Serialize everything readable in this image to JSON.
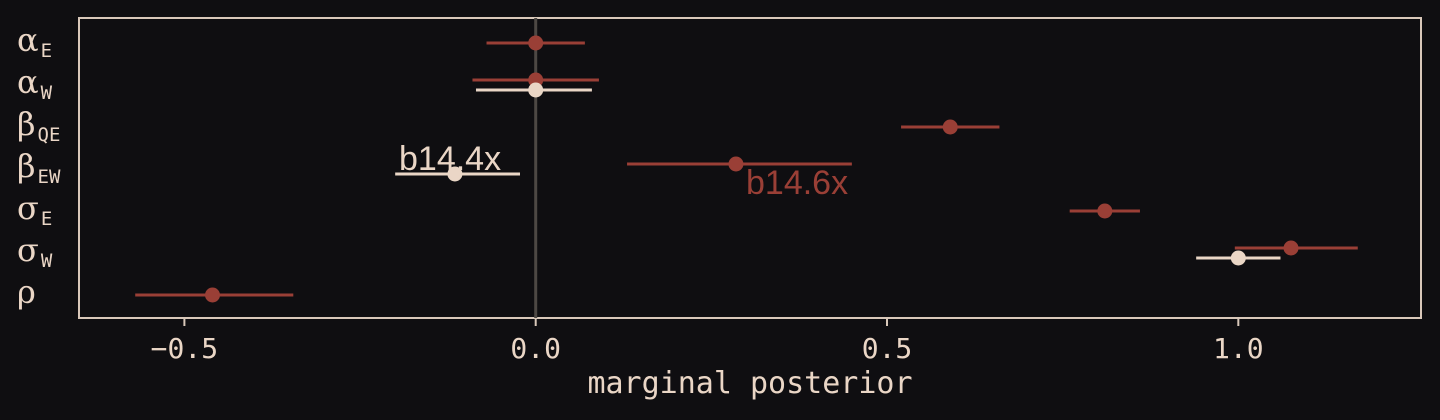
{
  "chart_data": {
    "type": "scatter",
    "xlabel": "marginal posterior",
    "xlim": [
      -0.65,
      1.26
    ],
    "xticks": [
      {
        "value": -0.5,
        "label": "−0.5"
      },
      {
        "value": 0.0,
        "label": "0.0"
      },
      {
        "value": 0.5,
        "label": "0.5"
      },
      {
        "value": 1.0,
        "label": "1.0"
      }
    ],
    "reference_line": 0,
    "grid": false,
    "parameters": [
      {
        "key": "alpha_E",
        "name": "α",
        "sub": "E"
      },
      {
        "key": "alpha_W",
        "name": "α",
        "sub": "W"
      },
      {
        "key": "beta_QE",
        "name": "β",
        "sub": "QE"
      },
      {
        "key": "beta_EW",
        "name": "β",
        "sub": "EW"
      },
      {
        "key": "sigma_E",
        "name": "σ",
        "sub": "E"
      },
      {
        "key": "sigma_W",
        "name": "σ",
        "sub": "W"
      },
      {
        "key": "rho",
        "name": "ρ",
        "sub": ""
      }
    ],
    "series": [
      {
        "name": "b14.6x",
        "color": "#9a3f36",
        "points": [
          {
            "param": "alpha_E",
            "mean": 0.0,
            "lower": -0.07,
            "upper": 0.07
          },
          {
            "param": "alpha_W",
            "mean": 0.0,
            "lower": -0.09,
            "upper": 0.09
          },
          {
            "param": "beta_QE",
            "mean": 0.59,
            "lower": 0.52,
            "upper": 0.66
          },
          {
            "param": "beta_EW",
            "mean": 0.285,
            "lower": 0.13,
            "upper": 0.45
          },
          {
            "param": "sigma_E",
            "mean": 0.81,
            "lower": 0.76,
            "upper": 0.86
          },
          {
            "param": "sigma_W",
            "mean": 1.075,
            "lower": 0.995,
            "upper": 1.17
          },
          {
            "param": "rho",
            "mean": -0.46,
            "lower": -0.57,
            "upper": -0.345
          }
        ]
      },
      {
        "name": "b14.4x",
        "color": "#ead6c6",
        "points": [
          {
            "param": "alpha_W",
            "mean": 0.0,
            "lower": -0.085,
            "upper": 0.08
          },
          {
            "param": "beta_EW",
            "mean": -0.115,
            "lower": -0.2,
            "upper": -0.028
          },
          {
            "param": "sigma_W",
            "mean": 1.0,
            "lower": 0.94,
            "upper": 1.06
          }
        ]
      }
    ]
  },
  "colors": {
    "background": "#0f0e11",
    "frame": "#d9c8ba",
    "text": "#ead6c6",
    "reference_line": "#4d4844"
  }
}
